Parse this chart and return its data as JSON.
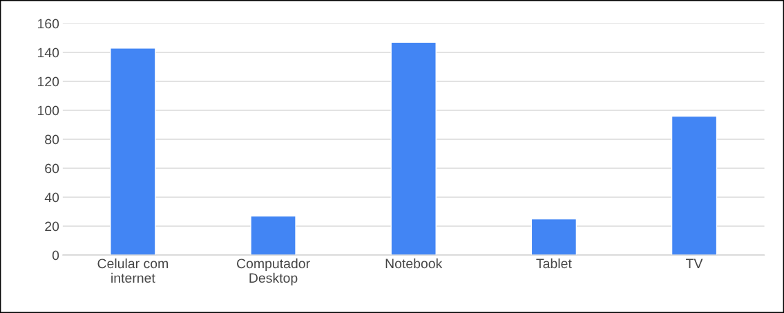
{
  "chart_data": {
    "type": "bar",
    "categories": [
      "Celular com internet",
      "Computador Desktop",
      "Notebook",
      "Tablet",
      "TV"
    ],
    "values": [
      143,
      27,
      147,
      25,
      96
    ],
    "color": "#4285f4",
    "ylim": [
      0,
      160
    ],
    "yticks": [
      0,
      20,
      40,
      60,
      80,
      100,
      120,
      140,
      160
    ],
    "grid": "y",
    "legend": false
  }
}
